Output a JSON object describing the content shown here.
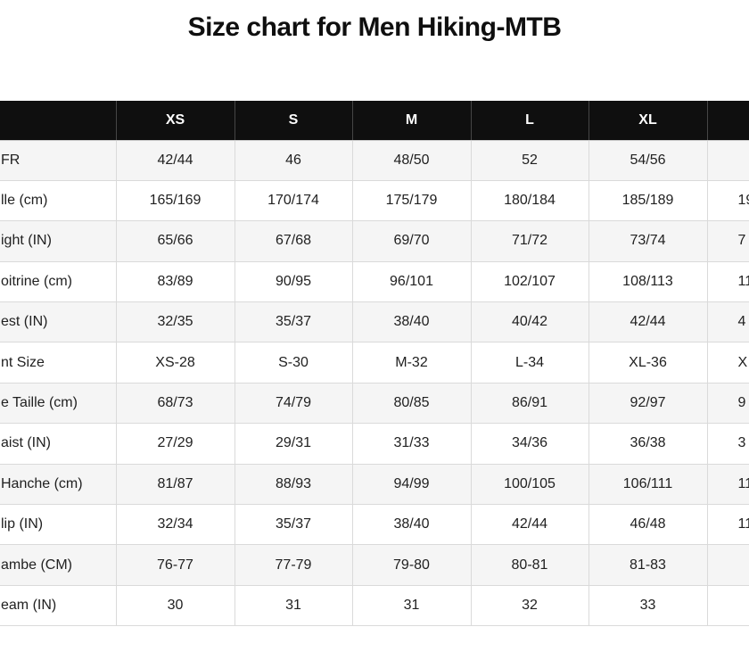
{
  "page": {
    "title": "Size chart for Men Hiking-MTB"
  },
  "table": {
    "header": [
      "",
      "XS",
      "S",
      "M",
      "L",
      "XL",
      ""
    ],
    "rows": [
      {
        "label": "FR",
        "values": [
          "42/44",
          "46",
          "48/50",
          "52",
          "54/56",
          ""
        ]
      },
      {
        "label": "lle (cm)",
        "values": [
          "165/169",
          "170/174",
          "175/179",
          "180/184",
          "185/189",
          "19"
        ]
      },
      {
        "label": "ight (IN)",
        "values": [
          "65/66",
          "67/68",
          "69/70",
          "71/72",
          "73/74",
          "7"
        ]
      },
      {
        "label": "oitrine (cm)",
        "values": [
          "83/89",
          "90/95",
          "96/101",
          "102/107",
          "108/113",
          "11"
        ]
      },
      {
        "label": "est (IN)",
        "values": [
          "32/35",
          "35/37",
          "38/40",
          "40/42",
          "42/44",
          "4"
        ]
      },
      {
        "label": "nt Size",
        "values": [
          "XS-28",
          "S-30",
          "M-32",
          "L-34",
          "XL-36",
          "X"
        ]
      },
      {
        "label": "e Taille (cm)",
        "values": [
          "68/73",
          "74/79",
          "80/85",
          "86/91",
          "92/97",
          "9"
        ]
      },
      {
        "label": "aist (IN)",
        "values": [
          "27/29",
          "29/31",
          "31/33",
          "34/36",
          "36/38",
          "3"
        ]
      },
      {
        "label": "Hanche (cm)",
        "values": [
          "81/87",
          "88/93",
          "94/99",
          "100/105",
          "106/111",
          "11"
        ]
      },
      {
        "label": "lip (IN)",
        "values": [
          "32/34",
          "35/37",
          "38/40",
          "42/44",
          "46/48",
          "11"
        ]
      },
      {
        "label": "ambe (CM)",
        "values": [
          "76-77",
          "77-79",
          "79-80",
          "80-81",
          "81-83",
          ""
        ]
      },
      {
        "label": "eam (IN)",
        "values": [
          "30",
          "31",
          "31",
          "32",
          "33",
          ""
        ]
      }
    ]
  },
  "colors": {
    "header_bg": "#0f0f0f",
    "header_text": "#ffffff",
    "row_alt_bg": "#f5f5f5",
    "row_bg": "#ffffff",
    "border": "#dadada",
    "text": "#212121"
  }
}
